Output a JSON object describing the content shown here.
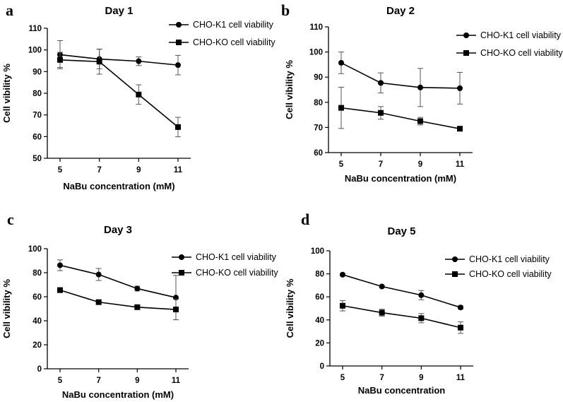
{
  "chart_data": [
    {
      "panel": "a",
      "type": "line",
      "title": "Day 1",
      "xlabel": "NaBu concentration (mM)",
      "ylabel": "Cell vibility %",
      "x": [
        5,
        7,
        9,
        11
      ],
      "ylim": [
        50,
        110
      ],
      "yticks": [
        50,
        60,
        70,
        80,
        90,
        100,
        110
      ],
      "xticks": [
        5,
        7,
        9,
        11
      ],
      "legend_position": "top-right",
      "series": [
        {
          "name": "CHO-K1 cell viability",
          "marker": "circle",
          "values": [
            97.8,
            95.8,
            94.8,
            93.0
          ],
          "errors": [
            6.5,
            4.5,
            2.0,
            4.5
          ]
        },
        {
          "name": "CHO-KO cell viability",
          "marker": "square",
          "values": [
            95.4,
            94.6,
            79.4,
            64.4
          ],
          "errors": [
            3.5,
            5.8,
            4.5,
            4.5
          ]
        }
      ]
    },
    {
      "panel": "b",
      "type": "line",
      "title": "Day 2",
      "xlabel": "NaBu concentration (mM)",
      "ylabel": "Cell vibility %",
      "x": [
        5,
        7,
        9,
        11
      ],
      "ylim": [
        60,
        110
      ],
      "yticks": [
        60,
        70,
        80,
        90,
        100,
        110
      ],
      "xticks": [
        5,
        7,
        9,
        11
      ],
      "legend_position": "top-right",
      "series": [
        {
          "name": "CHO-K1 cell viability",
          "marker": "circle",
          "values": [
            95.7,
            87.7,
            85.9,
            85.6
          ],
          "errors": [
            4.3,
            4.0,
            7.6,
            6.3
          ]
        },
        {
          "name": "CHO-KO cell viability",
          "marker": "square",
          "values": [
            77.8,
            75.8,
            72.5,
            69.5
          ],
          "errors": [
            8.2,
            2.5,
            1.5,
            0.5
          ]
        }
      ]
    },
    {
      "panel": "c",
      "type": "line",
      "title": "Day 3",
      "xlabel": "NaBu concentration (mM)",
      "ylabel": "Cell vibility %",
      "x": [
        5,
        7,
        9,
        11
      ],
      "ylim": [
        0,
        100
      ],
      "yticks": [
        0,
        20,
        40,
        60,
        80,
        100
      ],
      "xticks": [
        5,
        7,
        9,
        11
      ],
      "legend_position": "top-right",
      "series": [
        {
          "name": "CHO-K1 cell viability",
          "marker": "circle",
          "values": [
            86.2,
            78.5,
            66.8,
            59.3
          ],
          "errors": [
            4.5,
            5.0,
            2.0,
            18.5
          ]
        },
        {
          "name": "CHO-KO cell viability",
          "marker": "square",
          "values": [
            65.5,
            55.5,
            51.3,
            49.4
          ],
          "errors": [
            2.0,
            1.5,
            1.2,
            8.5
          ]
        }
      ]
    },
    {
      "panel": "d",
      "type": "line",
      "title": "Day 5",
      "xlabel": "NaBu concentration",
      "ylabel": "Cell vibility %",
      "x": [
        5,
        7,
        9,
        11
      ],
      "ylim": [
        0,
        100
      ],
      "yticks": [
        0,
        20,
        40,
        60,
        80,
        100
      ],
      "xticks": [
        5,
        7,
        9,
        11
      ],
      "legend_position": "top-right",
      "series": [
        {
          "name": "CHO-K1 cell viability",
          "marker": "circle",
          "values": [
            79.3,
            69.0,
            61.5,
            50.8
          ],
          "errors": [
            1.0,
            1.0,
            4.0,
            1.5
          ]
        },
        {
          "name": "CHO-KO cell viability",
          "marker": "square",
          "values": [
            52.3,
            46.3,
            41.5,
            33.3
          ],
          "errors": [
            4.5,
            3.0,
            4.0,
            5.0
          ]
        }
      ]
    }
  ]
}
